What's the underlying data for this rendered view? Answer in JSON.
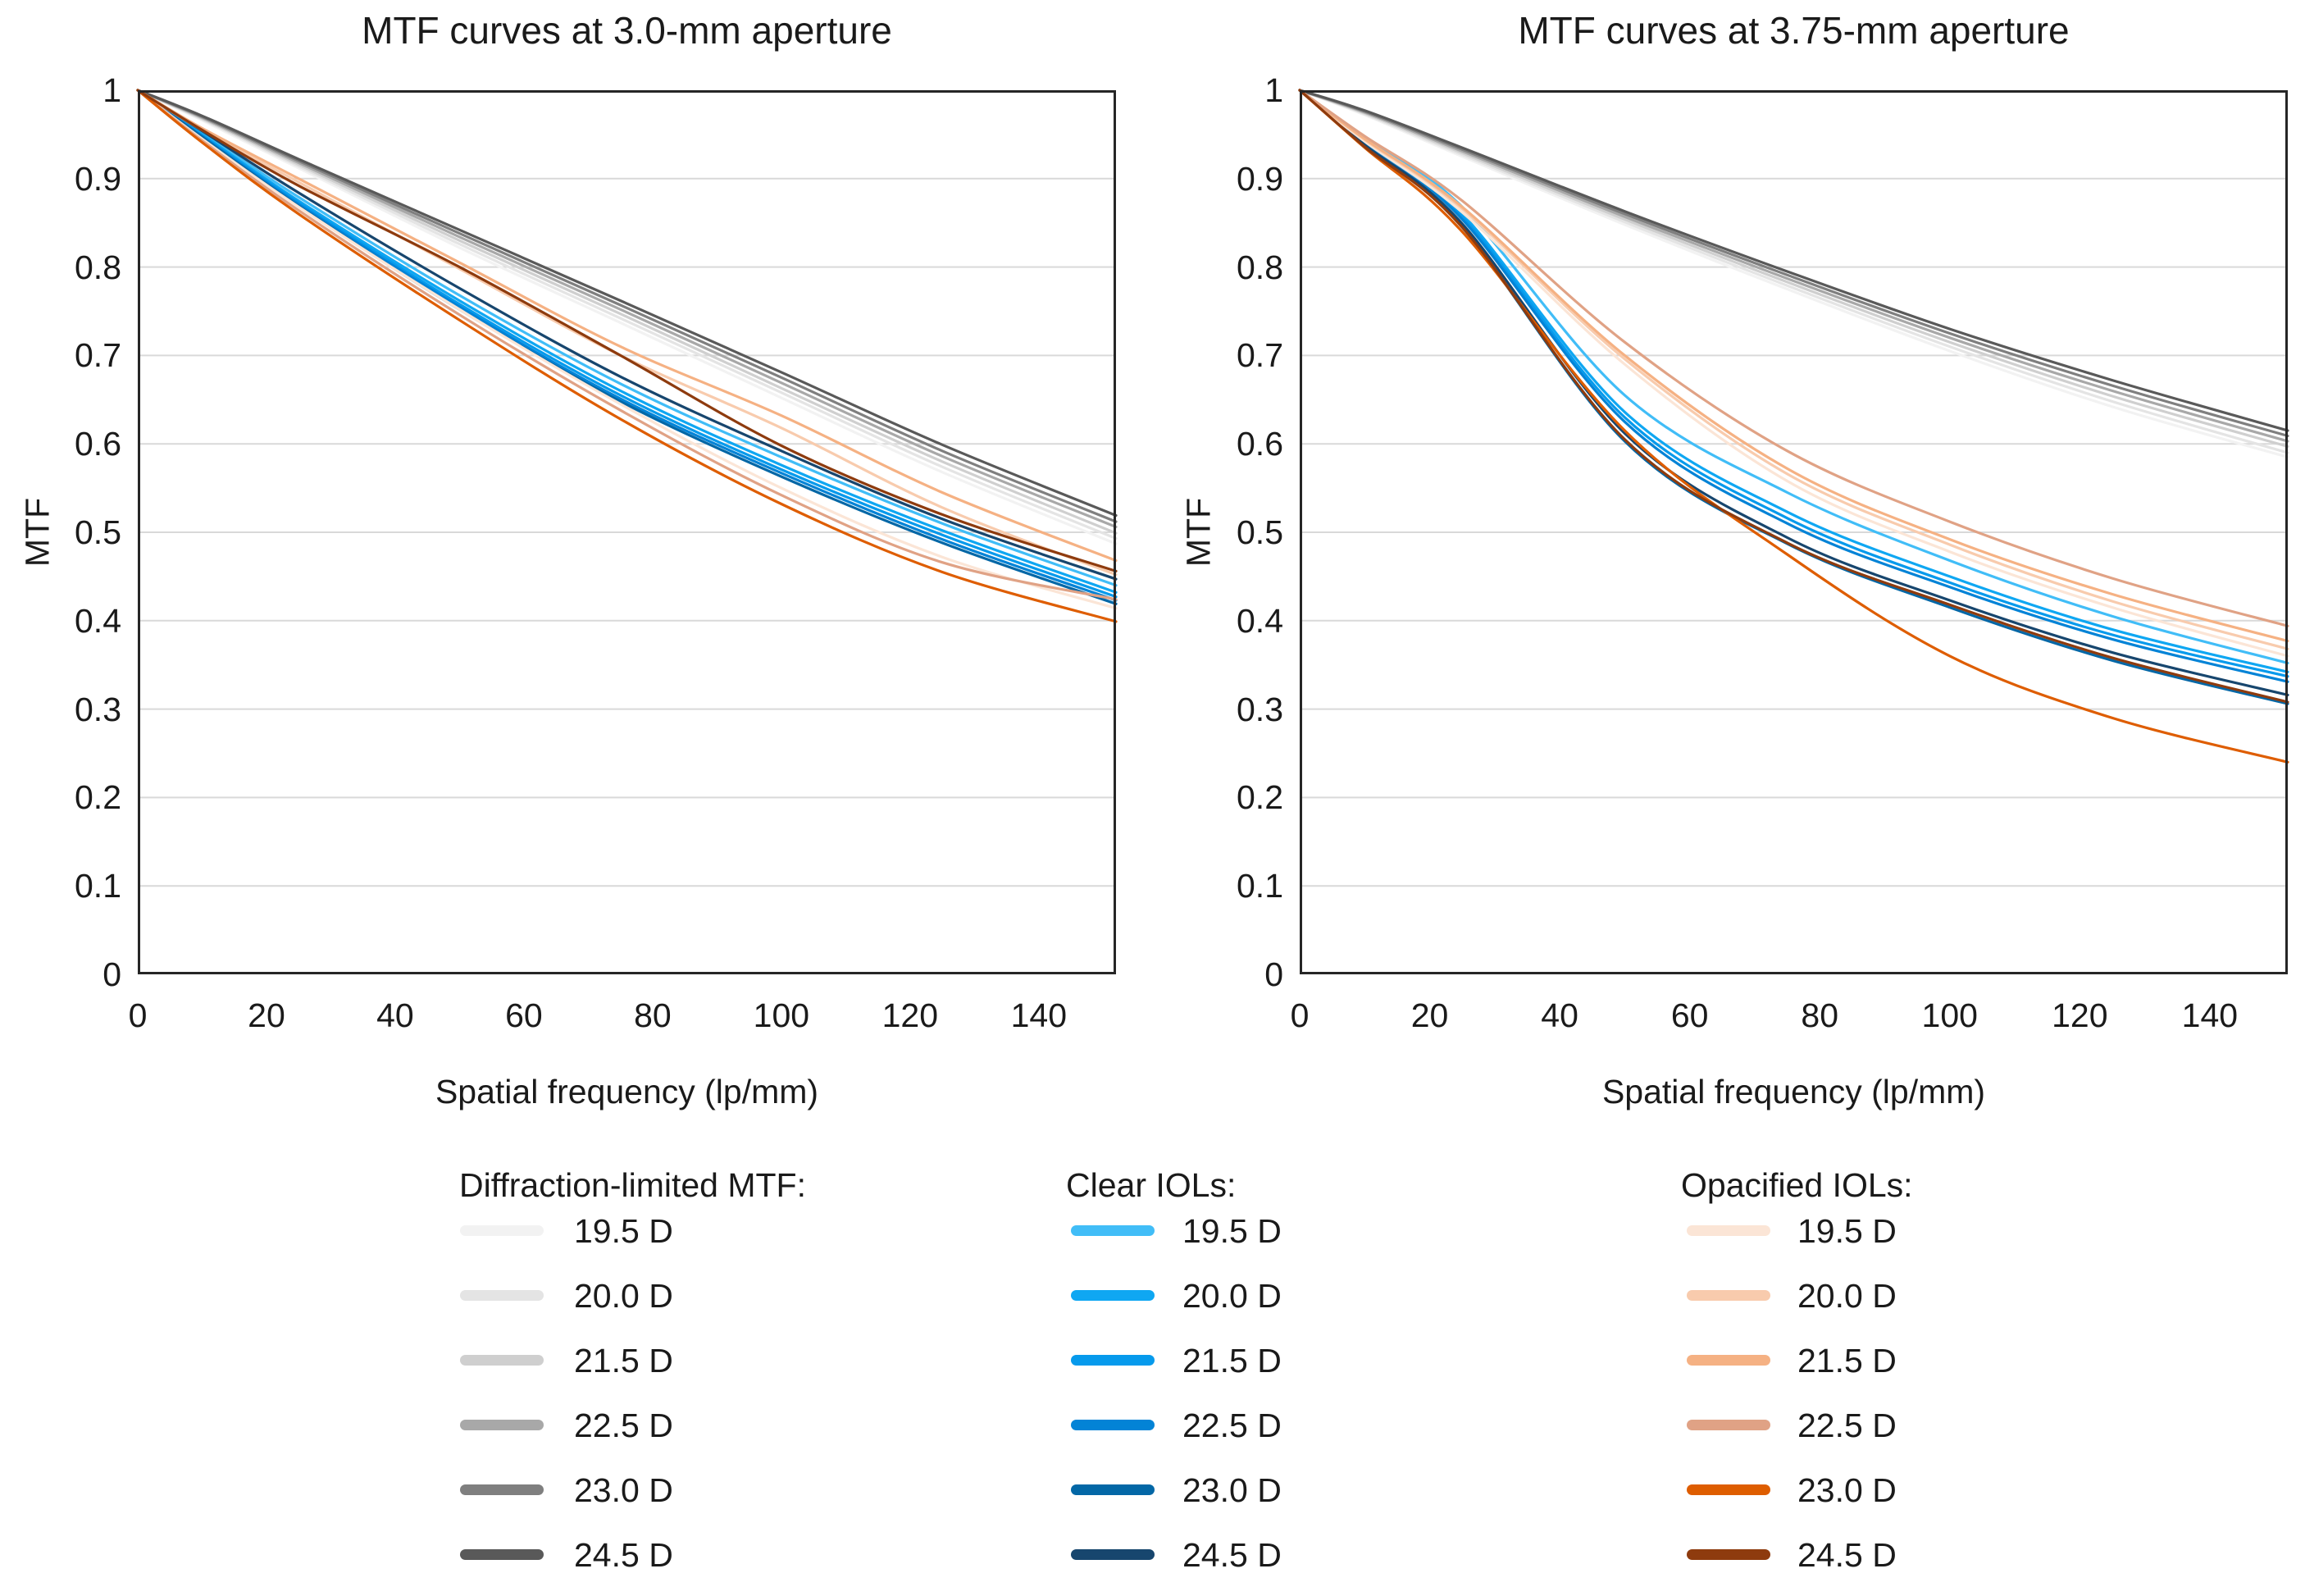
{
  "chart_data": [
    {
      "type": "line",
      "title": "MTF curves at 3.0-mm aperture",
      "xlabel": "Spatial frequency (lp/mm)",
      "ylabel": "MTF",
      "xlim": [
        0,
        152
      ],
      "ylim": [
        0,
        1
      ],
      "grid": "horizontal",
      "x_tick_labels": [
        "0",
        "20",
        "40",
        "60",
        "80",
        "100",
        "120",
        "140"
      ],
      "y_tick_labels": [
        "1",
        "0.9",
        "0.8",
        "0.7",
        "0.6",
        "0.5",
        "0.4",
        "0.3",
        "0.2",
        "0.1",
        "0"
      ],
      "x": [
        0,
        10,
        25,
        50,
        75,
        100,
        125,
        152
      ],
      "series": [
        {
          "group": "Diffraction-limited MTF",
          "label": "19.5 D",
          "color": "#F2F2F2",
          "values": [
            1,
            0.966,
            0.912,
            0.822,
            0.737,
            0.652,
            0.568,
            0.487
          ]
        },
        {
          "group": "Diffraction-limited MTF",
          "label": "20.0 D",
          "color": "#E4E4E4",
          "values": [
            1,
            0.967,
            0.914,
            0.826,
            0.742,
            0.658,
            0.574,
            0.493
          ]
        },
        {
          "group": "Diffraction-limited MTF",
          "label": "21.5 D",
          "color": "#CFCFCF",
          "values": [
            1,
            0.968,
            0.916,
            0.83,
            0.747,
            0.663,
            0.58,
            0.499
          ]
        },
        {
          "group": "Diffraction-limited MTF",
          "label": "22.5 D",
          "color": "#A8A8A8",
          "values": [
            1,
            0.969,
            0.918,
            0.834,
            0.752,
            0.669,
            0.586,
            0.506
          ]
        },
        {
          "group": "Diffraction-limited MTF",
          "label": "23.0 D",
          "color": "#7F7F7F",
          "values": [
            1,
            0.97,
            0.92,
            0.838,
            0.757,
            0.675,
            0.592,
            0.512
          ]
        },
        {
          "group": "Diffraction-limited MTF",
          "label": "24.5 D",
          "color": "#595959",
          "values": [
            1,
            0.971,
            0.922,
            0.842,
            0.762,
            0.681,
            0.599,
            0.519
          ]
        },
        {
          "group": "Clear IOLs",
          "label": "19.5 D",
          "color": "#41BDF7",
          "values": [
            1,
            0.952,
            0.879,
            0.768,
            0.668,
            0.585,
            0.51,
            0.44
          ]
        },
        {
          "group": "Clear IOLs",
          "label": "20.0 D",
          "color": "#0FA7F2",
          "values": [
            1,
            0.95,
            0.875,
            0.762,
            0.66,
            0.576,
            0.502,
            0.432
          ]
        },
        {
          "group": "Clear IOLs",
          "label": "21.5 D",
          "color": "#069AEC",
          "values": [
            1,
            0.949,
            0.873,
            0.758,
            0.655,
            0.571,
            0.497,
            0.427
          ]
        },
        {
          "group": "Clear IOLs",
          "label": "22.5 D",
          "color": "#0383D6",
          "values": [
            1,
            0.948,
            0.871,
            0.755,
            0.651,
            0.567,
            0.492,
            0.423
          ]
        },
        {
          "group": "Clear IOLs",
          "label": "23.0 D",
          "color": "#0367A6",
          "values": [
            1,
            0.947,
            0.869,
            0.752,
            0.648,
            0.563,
            0.488,
            0.419
          ]
        },
        {
          "group": "Clear IOLs",
          "label": "24.5 D",
          "color": "#17466E",
          "values": [
            1,
            0.954,
            0.884,
            0.776,
            0.676,
            0.592,
            0.515,
            0.447
          ]
        },
        {
          "group": "Opacified IOLs",
          "label": "19.5 D",
          "color": "#FBE5D6",
          "values": [
            1,
            0.945,
            0.868,
            0.752,
            0.645,
            0.55,
            0.472,
            0.414
          ]
        },
        {
          "group": "Opacified IOLs",
          "label": "20.0 D",
          "color": "#F8CBAD",
          "values": [
            1,
            0.955,
            0.896,
            0.798,
            0.7,
            0.618,
            0.528,
            0.452
          ]
        },
        {
          "group": "Opacified IOLs",
          "label": "21.5 D",
          "color": "#F5B183",
          "values": [
            1,
            0.957,
            0.9,
            0.805,
            0.71,
            0.632,
            0.545,
            0.468
          ]
        },
        {
          "group": "Opacified IOLs",
          "label": "22.5 D",
          "color": "#E0A285",
          "values": [
            1,
            0.943,
            0.864,
            0.746,
            0.638,
            0.542,
            0.466,
            0.424
          ]
        },
        {
          "group": "Opacified IOLs",
          "label": "23.0 D",
          "color": "#DE5D00",
          "values": [
            1,
            0.941,
            0.86,
            0.74,
            0.628,
            0.532,
            0.455,
            0.399
          ]
        },
        {
          "group": "Opacified IOLs",
          "label": "24.5 D",
          "color": "#8E3B0E",
          "values": [
            1,
            0.955,
            0.892,
            0.8,
            0.7,
            0.598,
            0.52,
            0.456
          ]
        }
      ]
    },
    {
      "type": "line",
      "title": "MTF curves at 3.75-mm aperture",
      "xlabel": "Spatial frequency (lp/mm)",
      "ylabel": "MTF",
      "xlim": [
        0,
        152
      ],
      "ylim": [
        0,
        1
      ],
      "grid": "horizontal",
      "x_tick_labels": [
        "0",
        "20",
        "40",
        "60",
        "80",
        "100",
        "120",
        "140"
      ],
      "y_tick_labels": [
        "1",
        "0.9",
        "0.8",
        "0.7",
        "0.6",
        "0.5",
        "0.4",
        "0.3",
        "0.2",
        "0.1",
        "0"
      ],
      "x": [
        0,
        10,
        25,
        50,
        75,
        100,
        125,
        152
      ],
      "series": [
        {
          "group": "Diffraction-limited MTF",
          "label": "19.5 D",
          "color": "#F2F2F2",
          "values": [
            1,
            0.972,
            0.925,
            0.848,
            0.775,
            0.705,
            0.642,
            0.585
          ]
        },
        {
          "group": "Diffraction-limited MTF",
          "label": "20.0 D",
          "color": "#E4E4E4",
          "values": [
            1,
            0.973,
            0.927,
            0.851,
            0.779,
            0.71,
            0.648,
            0.59
          ]
        },
        {
          "group": "Diffraction-limited MTF",
          "label": "21.5 D",
          "color": "#CFCFCF",
          "values": [
            1,
            0.974,
            0.929,
            0.854,
            0.783,
            0.715,
            0.654,
            0.597
          ]
        },
        {
          "group": "Diffraction-limited MTF",
          "label": "22.5 D",
          "color": "#A8A8A8",
          "values": [
            1,
            0.975,
            0.931,
            0.857,
            0.787,
            0.72,
            0.66,
            0.603
          ]
        },
        {
          "group": "Diffraction-limited MTF",
          "label": "23.0 D",
          "color": "#7F7F7F",
          "values": [
            1,
            0.976,
            0.933,
            0.86,
            0.791,
            0.725,
            0.666,
            0.609
          ]
        },
        {
          "group": "Diffraction-limited MTF",
          "label": "24.5 D",
          "color": "#595959",
          "values": [
            1,
            0.977,
            0.935,
            0.863,
            0.795,
            0.73,
            0.672,
            0.615
          ]
        },
        {
          "group": "Clear IOLs",
          "label": "19.5 D",
          "color": "#41BDF7",
          "values": [
            1,
            0.945,
            0.868,
            0.655,
            0.545,
            0.468,
            0.405,
            0.352
          ]
        },
        {
          "group": "Clear IOLs",
          "label": "20.0 D",
          "color": "#0FA7F2",
          "values": [
            1,
            0.942,
            0.86,
            0.636,
            0.523,
            0.45,
            0.39,
            0.342
          ]
        },
        {
          "group": "Clear IOLs",
          "label": "21.5 D",
          "color": "#069AEC",
          "values": [
            1,
            0.941,
            0.857,
            0.63,
            0.516,
            0.443,
            0.384,
            0.337
          ]
        },
        {
          "group": "Clear IOLs",
          "label": "22.5 D",
          "color": "#0383D6",
          "values": [
            1,
            0.94,
            0.854,
            0.625,
            0.51,
            0.438,
            0.379,
            0.331
          ]
        },
        {
          "group": "Clear IOLs",
          "label": "23.0 D",
          "color": "#0367A6",
          "values": [
            1,
            0.937,
            0.845,
            0.603,
            0.487,
            0.415,
            0.355,
            0.306
          ]
        },
        {
          "group": "Clear IOLs",
          "label": "24.5 D",
          "color": "#17466E",
          "values": [
            1,
            0.938,
            0.849,
            0.612,
            0.494,
            0.423,
            0.364,
            0.316
          ]
        },
        {
          "group": "Opacified IOLs",
          "label": "19.5 D",
          "color": "#FBE5D6",
          "values": [
            1,
            0.942,
            0.862,
            0.69,
            0.558,
            0.478,
            0.415,
            0.36
          ]
        },
        {
          "group": "Opacified IOLs",
          "label": "20.0 D",
          "color": "#F8CBAD",
          "values": [
            1,
            0.944,
            0.866,
            0.696,
            0.566,
            0.486,
            0.422,
            0.368
          ]
        },
        {
          "group": "Opacified IOLs",
          "label": "21.5 D",
          "color": "#F5B183",
          "values": [
            1,
            0.945,
            0.868,
            0.7,
            0.572,
            0.492,
            0.43,
            0.377
          ]
        },
        {
          "group": "Opacified IOLs",
          "label": "22.5 D",
          "color": "#E0A285",
          "values": [
            1,
            0.948,
            0.875,
            0.715,
            0.592,
            0.512,
            0.448,
            0.394
          ]
        },
        {
          "group": "Opacified IOLs",
          "label": "23.0 D",
          "color": "#DE5D00",
          "values": [
            1,
            0.935,
            0.84,
            0.615,
            0.475,
            0.36,
            0.29,
            0.24
          ]
        },
        {
          "group": "Opacified IOLs",
          "label": "24.5 D",
          "color": "#8E3B0E",
          "values": [
            1,
            0.936,
            0.845,
            0.605,
            0.488,
            0.418,
            0.358,
            0.308
          ]
        }
      ]
    }
  ],
  "legend": {
    "columns": [
      {
        "header": "Diffraction-limited MTF:",
        "items": [
          {
            "label": "19.5 D",
            "color": "#F2F2F2"
          },
          {
            "label": "20.0 D",
            "color": "#E4E4E4"
          },
          {
            "label": "21.5 D",
            "color": "#CFCFCF"
          },
          {
            "label": "22.5 D",
            "color": "#A8A8A8"
          },
          {
            "label": "23.0 D",
            "color": "#7F7F7F"
          },
          {
            "label": "24.5 D",
            "color": "#595959"
          }
        ]
      },
      {
        "header": "Clear IOLs:",
        "items": [
          {
            "label": "19.5 D",
            "color": "#41BDF7"
          },
          {
            "label": "20.0 D",
            "color": "#0FA7F2"
          },
          {
            "label": "21.5 D",
            "color": "#069AEC"
          },
          {
            "label": "22.5 D",
            "color": "#0383D6"
          },
          {
            "label": "23.0 D",
            "color": "#0367A6"
          },
          {
            "label": "24.5 D",
            "color": "#17466E"
          }
        ]
      },
      {
        "header": "Opacified IOLs:",
        "items": [
          {
            "label": "19.5 D",
            "color": "#FBE5D6"
          },
          {
            "label": "20.0 D",
            "color": "#F8CBAD"
          },
          {
            "label": "21.5 D",
            "color": "#F5B183"
          },
          {
            "label": "22.5 D",
            "color": "#E0A285"
          },
          {
            "label": "23.0 D",
            "color": "#DE5D00"
          },
          {
            "label": "24.5 D",
            "color": "#8E3B0E"
          }
        ]
      }
    ]
  },
  "style_colors": {
    "background": "#FFFFFF",
    "text": "#1A1A1A",
    "plot_border": "#262626",
    "gridline": "#D9D9D9"
  }
}
